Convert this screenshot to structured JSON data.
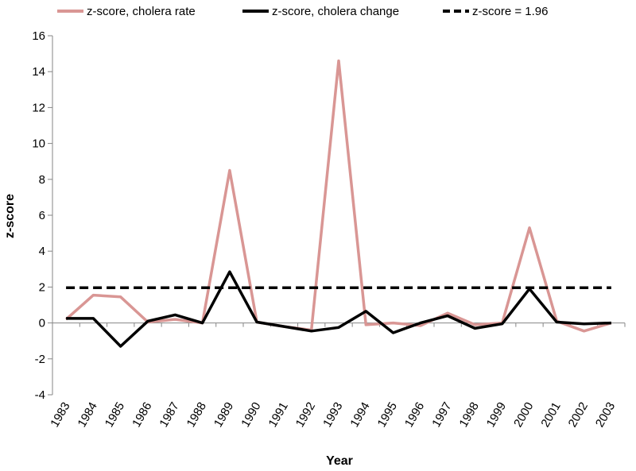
{
  "chart_data": {
    "type": "line",
    "title": "",
    "xlabel": "Year",
    "ylabel": "z-score",
    "ylim": [
      -4,
      16
    ],
    "yticks": [
      -4,
      -2,
      0,
      2,
      4,
      6,
      8,
      10,
      12,
      14,
      16
    ],
    "grid": false,
    "legend_position": "top",
    "categories": [
      "1983",
      "1984",
      "1985",
      "1986",
      "1987",
      "1988",
      "1989",
      "1990",
      "1991",
      "1992",
      "1993",
      "1994",
      "1995",
      "1996",
      "1997",
      "1998",
      "1999",
      "2000",
      "2001",
      "2002",
      "2003"
    ],
    "series": [
      {
        "name": "z-score, cholera rate",
        "color": "#d99694",
        "dashed": false,
        "values": [
          0.2,
          1.55,
          1.45,
          0.05,
          0.2,
          0.0,
          8.5,
          0.05,
          -0.2,
          -0.4,
          14.6,
          -0.1,
          0.0,
          -0.15,
          0.55,
          -0.1,
          0.0,
          5.3,
          0.1,
          -0.45,
          0.0
        ]
      },
      {
        "name": "z-score, cholera change",
        "color": "#000000",
        "dashed": false,
        "values": [
          0.25,
          0.25,
          -1.3,
          0.1,
          0.45,
          0.0,
          2.85,
          0.05,
          -0.2,
          -0.45,
          -0.25,
          0.65,
          -0.55,
          0.0,
          0.4,
          -0.3,
          -0.05,
          1.9,
          0.05,
          -0.05,
          0.0
        ]
      },
      {
        "name": "z-score = 1.96",
        "color": "#000000",
        "dashed": true,
        "values": [
          1.96,
          1.96,
          1.96,
          1.96,
          1.96,
          1.96,
          1.96,
          1.96,
          1.96,
          1.96,
          1.96,
          1.96,
          1.96,
          1.96,
          1.96,
          1.96,
          1.96,
          1.96,
          1.96,
          1.96,
          1.96
        ]
      }
    ]
  }
}
